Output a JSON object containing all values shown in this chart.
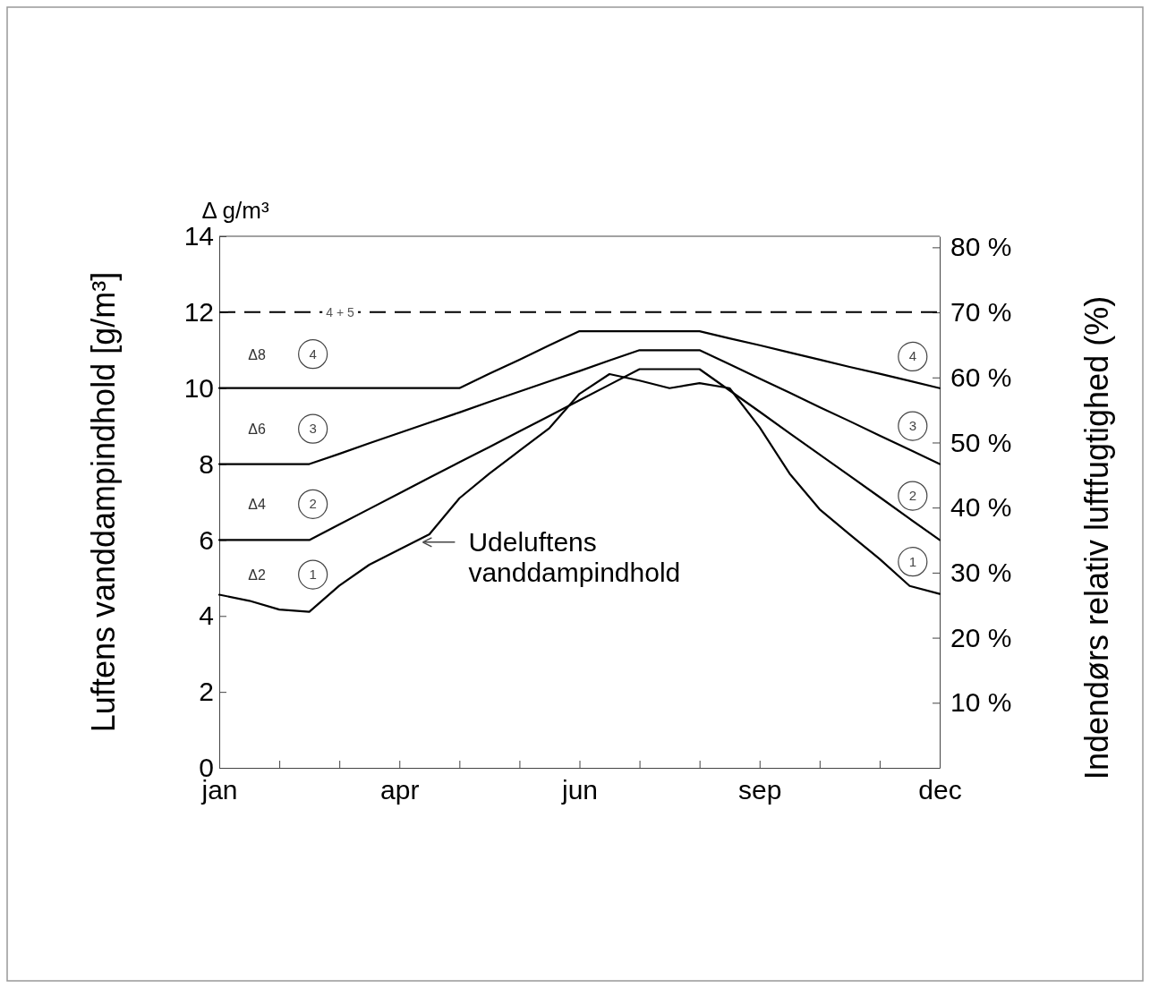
{
  "chart_data": {
    "type": "line",
    "ylabel": "Luftens vanddampindhold [g/m³]",
    "y2label": "Indendørs relativ luftfugtighed (%)",
    "categories": [
      "jan",
      null,
      null,
      null,
      null,
      null,
      "apr",
      null,
      null,
      null,
      null,
      null,
      "jun",
      null,
      null,
      null,
      null,
      null,
      "sep",
      null,
      null,
      null,
      null,
      null,
      "dec"
    ],
    "ylim": [
      0,
      14
    ],
    "yticks": [
      0,
      2,
      4,
      6,
      8,
      10,
      12,
      14
    ],
    "y2lim": [
      0,
      81.7
    ],
    "y2ticks": [
      {
        "value": 10,
        "label": "10 %"
      },
      {
        "value": 20,
        "label": "20 %"
      },
      {
        "value": 30,
        "label": "30 %"
      },
      {
        "value": 40,
        "label": "40 %"
      },
      {
        "value": 50,
        "label": "50 %"
      },
      {
        "value": 60,
        "label": "60 %"
      },
      {
        "value": 70,
        "label": "70 %"
      },
      {
        "value": 80,
        "label": "80 %"
      }
    ],
    "series": [
      {
        "name": "1",
        "color": "#000000",
        "values": [
          4.56,
          4.4,
          4.17,
          4.11,
          4.8,
          5.35,
          5.75,
          6.15,
          7.1,
          7.75,
          8.35,
          8.95,
          9.85,
          10.37,
          10.2,
          10.0,
          10.13,
          10.0,
          8.97,
          7.75,
          6.81,
          6.15,
          5.5,
          4.79,
          4.58
        ]
      },
      {
        "name": "2",
        "color": "#000000",
        "values": [
          6,
          6,
          6,
          6,
          6.41,
          6.82,
          7.23,
          7.64,
          8.05,
          8.45,
          8.86,
          9.27,
          9.68,
          10.09,
          10.5,
          10.5,
          10.5,
          9.94,
          9.38,
          8.81,
          8.25,
          7.69,
          7.13,
          6.56,
          6
        ]
      },
      {
        "name": "3",
        "color": "#000000",
        "values": [
          8,
          8,
          8,
          8,
          8.27,
          8.55,
          8.82,
          9.09,
          9.36,
          9.64,
          9.91,
          10.18,
          10.45,
          10.73,
          11,
          11,
          11,
          10.63,
          10.25,
          9.88,
          9.5,
          9.13,
          8.75,
          8.38,
          8
        ]
      },
      {
        "name": "4",
        "color": "#000000",
        "values": [
          10,
          10,
          10,
          10,
          10,
          10,
          10,
          10,
          10,
          10.38,
          10.75,
          11.13,
          11.5,
          11.5,
          11.5,
          11.5,
          11.5,
          11.31,
          11.13,
          10.94,
          10.75,
          10.56,
          10.38,
          10.19,
          10
        ]
      }
    ],
    "ref_lines": [
      {
        "axis": "y",
        "value": 12,
        "line_style": "dashed"
      }
    ],
    "annotations": [
      "Δ g/m³",
      "4 + 5",
      "Δ8",
      "Δ6",
      "Δ4",
      "Δ2",
      "Udeluftens vanddampindhold"
    ]
  }
}
